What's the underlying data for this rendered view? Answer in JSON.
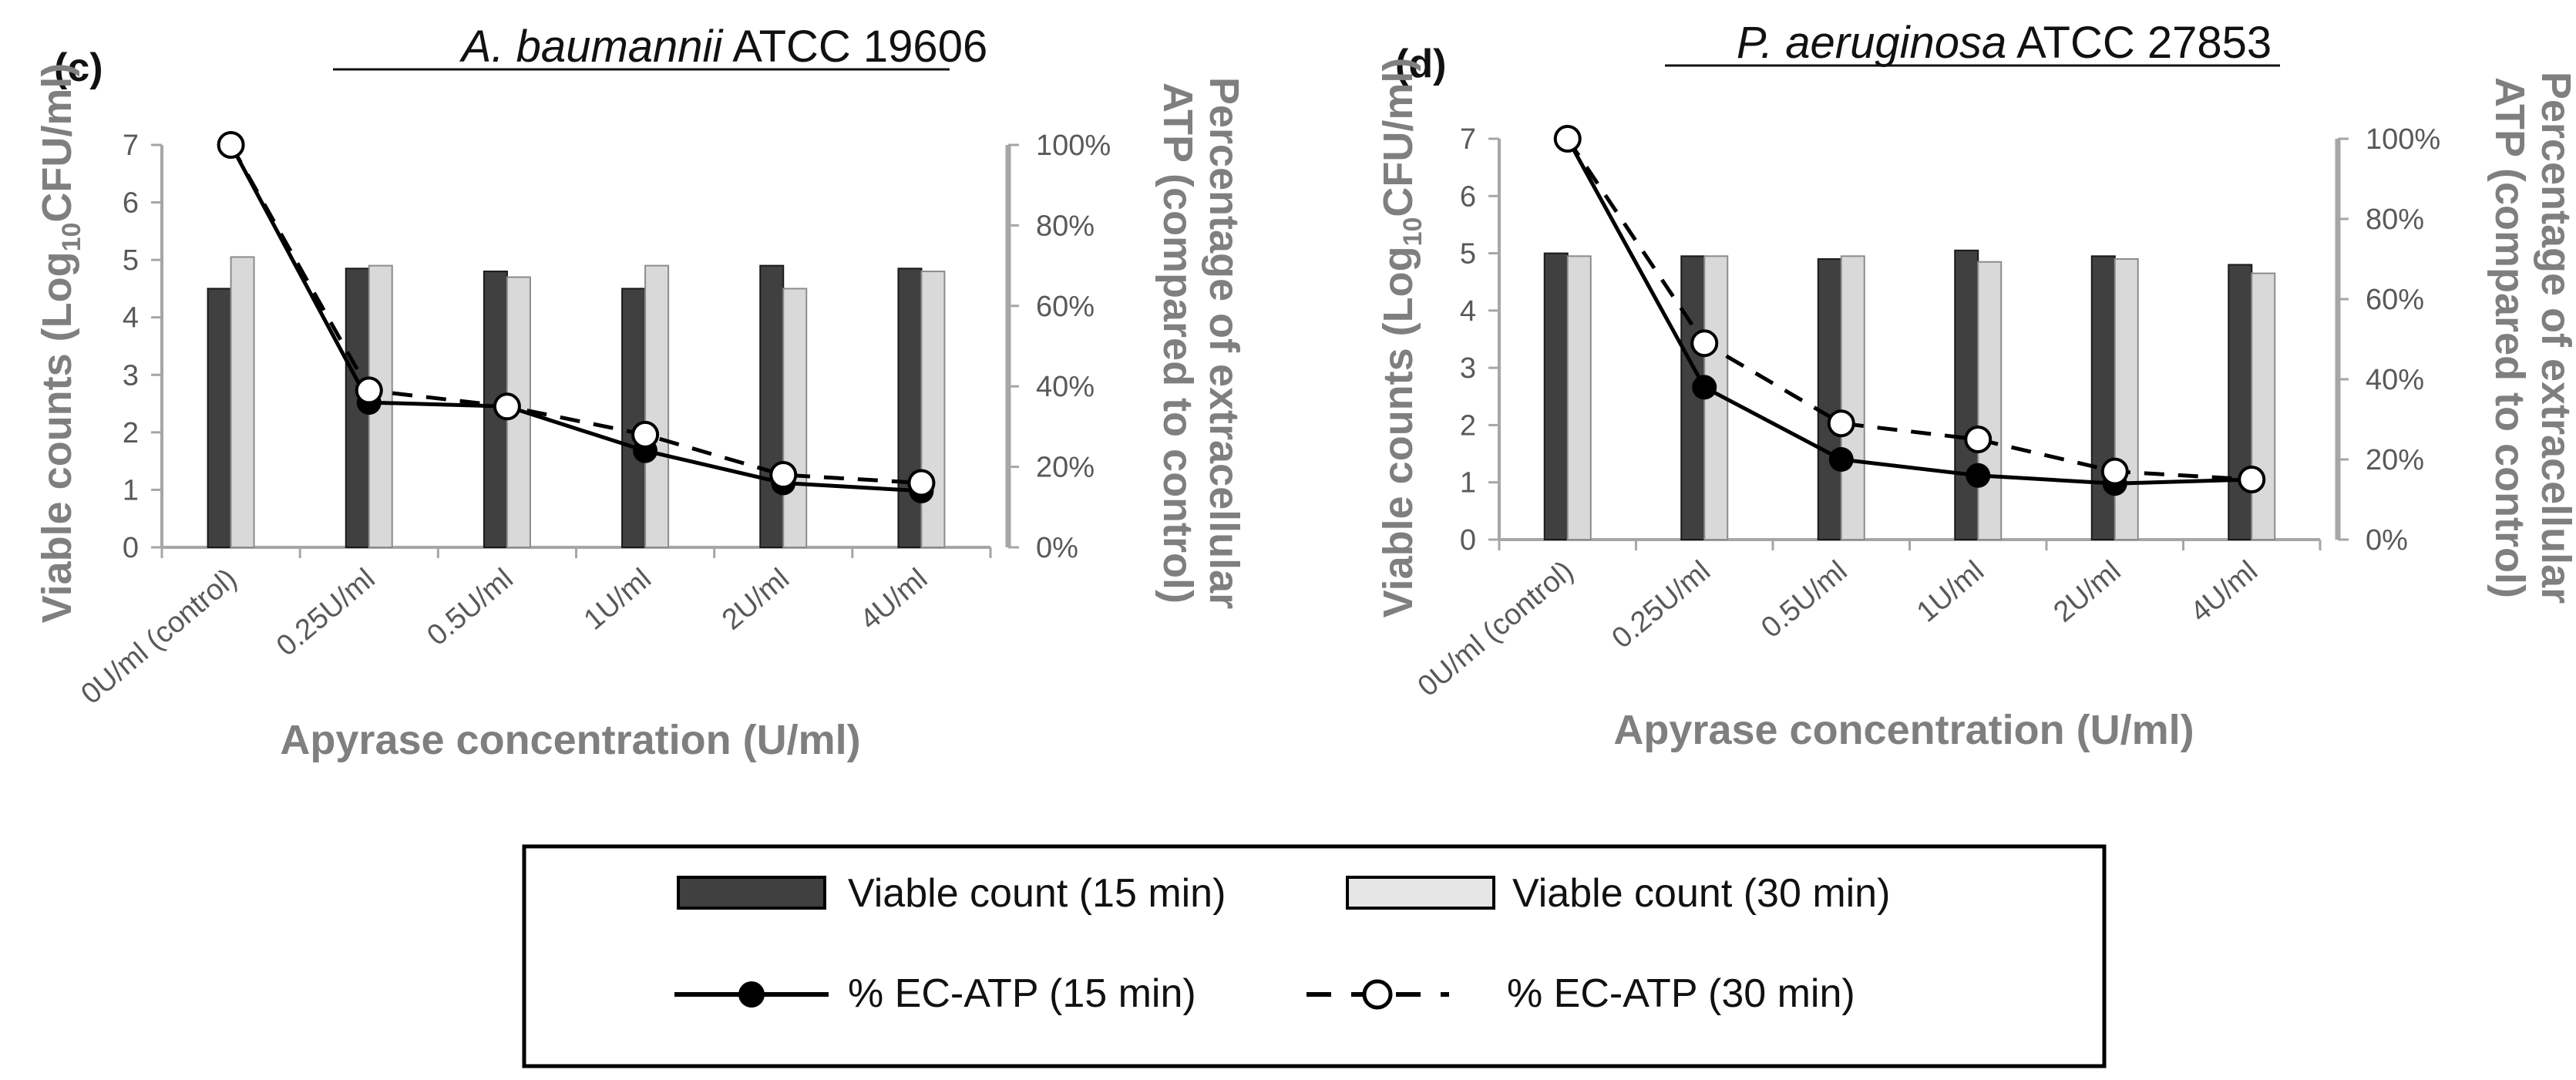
{
  "legend": {
    "viable15": "Viable count (15 min)",
    "viable30": "Viable count (30 min)",
    "atp15": "% EC-ATP (15 min)",
    "atp30": "% EC-ATP (30 min)"
  },
  "colors": {
    "bar15": "#404040",
    "bar30": "#d9d9d9",
    "axis": "#a6a6a6",
    "label": "#7f7f7f"
  },
  "chart_data": [
    {
      "type": "bar+line",
      "panel": "(c)",
      "title_italic": "A. baumannii",
      "title_rest": " ATCC 19606",
      "xlabel": "Apyrase concentration (U/ml)",
      "ylabel_left_parts": [
        "Viable counts (Log",
        "10",
        "CFU/ml)"
      ],
      "ylabel_right_lines": [
        "Percentage of extracellular",
        "ATP (compared to control)"
      ],
      "categories": [
        "0U/ml (control)",
        "0.25U/ml",
        "0.5U/ml",
        "1U/ml",
        "2U/ml",
        "4U/ml"
      ],
      "left_ticks": [
        "0",
        "1",
        "2",
        "3",
        "4",
        "5",
        "6",
        "7"
      ],
      "right_ticks": [
        "0%",
        "20%",
        "40%",
        "60%",
        "80%",
        "100%"
      ],
      "ylim_left": [
        0,
        7
      ],
      "ylim_right": [
        0,
        100
      ],
      "series": [
        {
          "name": "Viable count (15 min)",
          "kind": "bar",
          "values": [
            4.5,
            4.85,
            4.8,
            4.5,
            4.9,
            4.85
          ]
        },
        {
          "name": "Viable count (30 min)",
          "kind": "bar",
          "values": [
            5.05,
            4.9,
            4.7,
            4.9,
            4.5,
            4.8
          ]
        },
        {
          "name": "% EC-ATP (15 min)",
          "kind": "line",
          "values": [
            100,
            36,
            35,
            24,
            16,
            14
          ]
        },
        {
          "name": "% EC-ATP (30 min)",
          "kind": "line",
          "values": [
            100,
            39,
            35,
            28,
            18,
            16
          ]
        }
      ]
    },
    {
      "type": "bar+line",
      "panel": "(d)",
      "title_italic": "P. aeruginosa",
      "title_rest": " ATCC 27853",
      "xlabel": "Apyrase concentration (U/ml)",
      "ylabel_left_parts": [
        "Viable counts (Log",
        "10",
        "CFU/ml)"
      ],
      "ylabel_right_lines": [
        "Percentage of extracellular",
        "ATP (compared to control)"
      ],
      "categories": [
        "0U/ml (control)",
        "0.25U/ml",
        "0.5U/ml",
        "1U/ml",
        "2U/ml",
        "4U/ml"
      ],
      "left_ticks": [
        "0",
        "1",
        "2",
        "3",
        "4",
        "5",
        "6",
        "7"
      ],
      "right_ticks": [
        "0%",
        "20%",
        "40%",
        "60%",
        "80%",
        "100%"
      ],
      "ylim_left": [
        0,
        7
      ],
      "ylim_right": [
        0,
        100
      ],
      "series": [
        {
          "name": "Viable count (15 min)",
          "kind": "bar",
          "values": [
            5.0,
            4.95,
            4.9,
            5.05,
            4.95,
            4.8
          ]
        },
        {
          "name": "Viable count (30 min)",
          "kind": "bar",
          "values": [
            4.95,
            4.95,
            4.95,
            4.85,
            4.9,
            4.65
          ]
        },
        {
          "name": "% EC-ATP (15 min)",
          "kind": "line",
          "values": [
            100,
            38,
            20,
            16,
            14,
            15
          ]
        },
        {
          "name": "% EC-ATP (30 min)",
          "kind": "line",
          "values": [
            100,
            49,
            29,
            25,
            17,
            15
          ]
        }
      ]
    }
  ]
}
